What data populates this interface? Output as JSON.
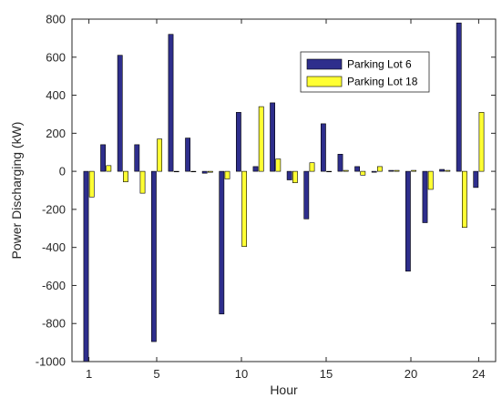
{
  "chart_data": {
    "type": "bar",
    "xlabel": "Hour",
    "ylabel": "Power Discharging (kW)",
    "ylim": [
      -1000,
      800
    ],
    "yticks": [
      -1000,
      -800,
      -600,
      -400,
      -200,
      0,
      200,
      400,
      600,
      800
    ],
    "xticks": [
      1,
      5,
      10,
      15,
      20,
      24
    ],
    "xlim": [
      0,
      25
    ],
    "grid": false,
    "legend_placement": "top-right",
    "categories": [
      1,
      2,
      3,
      4,
      5,
      6,
      7,
      8,
      9,
      10,
      11,
      12,
      13,
      14,
      15,
      16,
      17,
      18,
      19,
      20,
      21,
      22,
      23,
      24
    ],
    "series": [
      {
        "name": "Parking Lot 6",
        "color": "#2e2e8c",
        "values": [
          -1000,
          140,
          610,
          140,
          -895,
          720,
          175,
          -10,
          -750,
          310,
          25,
          360,
          -45,
          -250,
          250,
          90,
          25,
          -5,
          5,
          -525,
          -270,
          10,
          780,
          -85
        ]
      },
      {
        "name": "Parking Lot 18",
        "color": "#ffff33",
        "values": [
          -135,
          30,
          -55,
          -115,
          170,
          0,
          0,
          -5,
          -40,
          -395,
          340,
          65,
          -60,
          45,
          0,
          5,
          -20,
          25,
          5,
          5,
          -95,
          5,
          -295,
          310
        ]
      }
    ]
  }
}
